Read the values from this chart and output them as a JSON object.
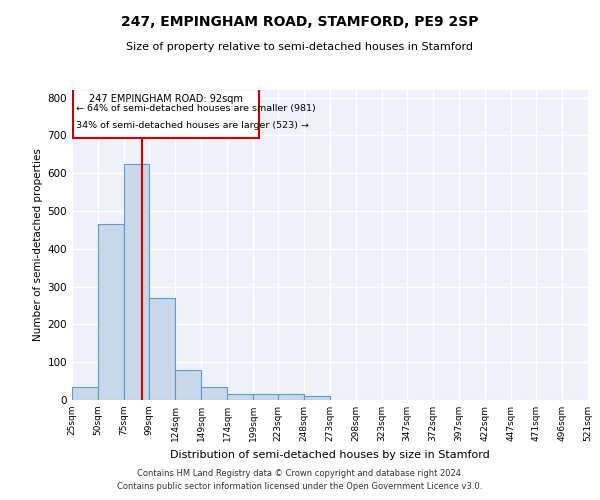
{
  "title": "247, EMPINGHAM ROAD, STAMFORD, PE9 2SP",
  "subtitle": "Size of property relative to semi-detached houses in Stamford",
  "xlabel": "Distribution of semi-detached houses by size in Stamford",
  "ylabel": "Number of semi-detached properties",
  "footer_line1": "Contains HM Land Registry data © Crown copyright and database right 2024.",
  "footer_line2": "Contains public sector information licensed under the Open Government Licence v3.0.",
  "annotation_line1": "247 EMPINGHAM ROAD: 92sqm",
  "annotation_line2": "← 64% of semi-detached houses are smaller (981)",
  "annotation_line3": "34% of semi-detached houses are larger (523) →",
  "property_size": 92,
  "bin_edges": [
    25,
    50,
    75,
    99,
    124,
    149,
    174,
    199,
    223,
    248,
    273,
    298,
    323,
    347,
    372,
    397,
    422,
    447,
    471,
    496,
    521
  ],
  "bar_heights": [
    35,
    465,
    625,
    270,
    80,
    35,
    15,
    15,
    15,
    10,
    0,
    0,
    0,
    0,
    0,
    0,
    0,
    0,
    0,
    0
  ],
  "bar_color": "#c8d8e8",
  "bar_edge_color": "#5b9bd5",
  "red_line_color": "#cc0000",
  "background_color": "#eef2f8",
  "grid_color": "#ffffff",
  "ylim": [
    0,
    820
  ],
  "yticks": [
    0,
    100,
    200,
    300,
    400,
    500,
    600,
    700,
    800
  ],
  "tick_labels": [
    "25sqm",
    "50sqm",
    "75sqm",
    "99sqm",
    "124sqm",
    "149sqm",
    "174sqm",
    "199sqm",
    "223sqm",
    "248sqm",
    "273sqm",
    "298sqm",
    "323sqm",
    "347sqm",
    "372sqm",
    "397sqm",
    "422sqm",
    "447sqm",
    "471sqm",
    "496sqm",
    "521sqm"
  ],
  "annotation_box_color": "#cc0000",
  "annotation_fill": "#ffffff",
  "figsize": [
    6.0,
    5.0
  ],
  "dpi": 100
}
